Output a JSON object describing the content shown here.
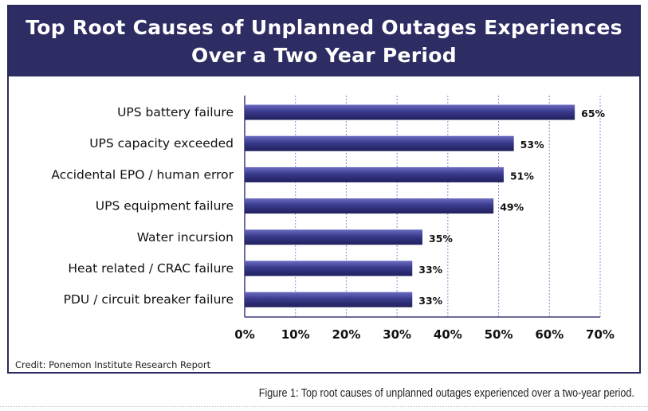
{
  "chart_data": {
    "type": "bar",
    "orientation": "horizontal",
    "title": "Top Root Causes of Unplanned Outages Experiences Over a Two Year Period",
    "title_lines": [
      "Top Root Causes of Unplanned Outages Experiences",
      "Over a Two Year Period"
    ],
    "categories": [
      "UPS battery failure",
      "UPS capacity exceeded",
      "Accidental EPO / human error",
      "UPS equipment failure",
      "Water incursion",
      "Heat related / CRAC failure",
      "PDU / circuit breaker failure"
    ],
    "values": [
      65,
      53,
      51,
      49,
      35,
      33,
      33
    ],
    "value_labels": [
      "65%",
      "53%",
      "51%",
      "49%",
      "35%",
      "33%",
      "33%"
    ],
    "xlim": [
      0,
      70
    ],
    "xticks": [
      "0%",
      "10%",
      "20%",
      "30%",
      "40%",
      "50%",
      "60%",
      "70%"
    ],
    "grid": true,
    "bar_color": "#3a3a8c"
  },
  "credit": "Credit: Ponemon Institute Research Report",
  "caption": "Figure 1: Top root causes of unplanned outages experienced over a two-year period."
}
